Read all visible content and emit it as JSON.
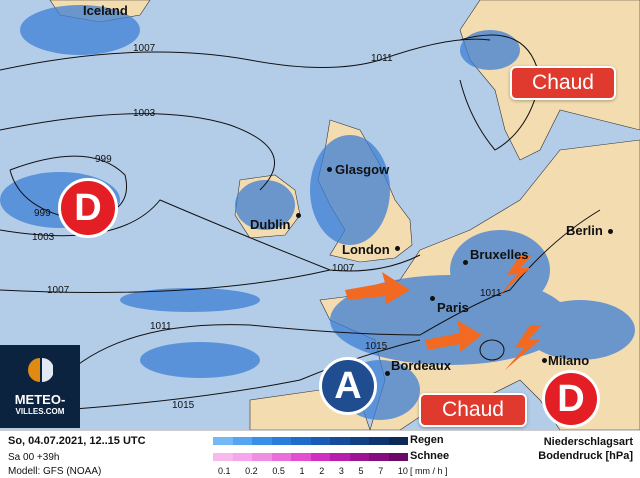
{
  "cities": [
    {
      "name": "Iceland"
    },
    {
      "name": "Glasgow"
    },
    {
      "name": "Dublin"
    },
    {
      "name": "London"
    },
    {
      "name": "Bruxelles"
    },
    {
      "name": "Berlin"
    },
    {
      "name": "Paris"
    },
    {
      "name": "Bordeaux"
    },
    {
      "name": "Milano"
    }
  ],
  "isobars": [
    "1007",
    "1011",
    "1003",
    "999",
    "999",
    "1003",
    "1007",
    "1011",
    "1015",
    "1015",
    "1007",
    "1011"
  ],
  "pressure_systems": {
    "low_label": "D",
    "high_label": "A"
  },
  "warm_labels": [
    "Chaud",
    "Chaud"
  ],
  "logo": {
    "line1": "METEO-",
    "line2": "VILLES.COM"
  },
  "footer": {
    "date": "So, 04.07.2021, 12..15 UTC",
    "run": "Sa 00 +39h",
    "model": "Modell: GFS (NOAA)",
    "rain_label": "Regen",
    "snow_label": "Schnee",
    "unit": "[ mm / h ]",
    "scale": [
      "0.1",
      "0.2",
      "0.5",
      "1",
      "2",
      "3",
      "5",
      "7",
      "10"
    ],
    "type_label": "Niederschlagsart",
    "pressure_label": "Bodendruck [hPa]"
  },
  "colors": {
    "ocean": "#b3cde8",
    "land": "#f3dcb0",
    "rain": "#3d7fd6",
    "low": "#e31e24",
    "high": "#1f4d8f",
    "warm": "#e03a2e",
    "arrow": "#f26a21",
    "rain_ramp": [
      "#74b9f7",
      "#56a5f0",
      "#3a8fe6",
      "#2a7ddb",
      "#1f6cc9",
      "#1a5cb3",
      "#154d9c",
      "#114085",
      "#0e346f",
      "#0b2a58"
    ],
    "snow_ramp": [
      "#f8b9ef",
      "#f6a6ec",
      "#f08ee6",
      "#ea6fdd",
      "#e24fd3",
      "#d12fc3",
      "#b81eac",
      "#9e1594",
      "#840e7d",
      "#6b0a66"
    ]
  }
}
